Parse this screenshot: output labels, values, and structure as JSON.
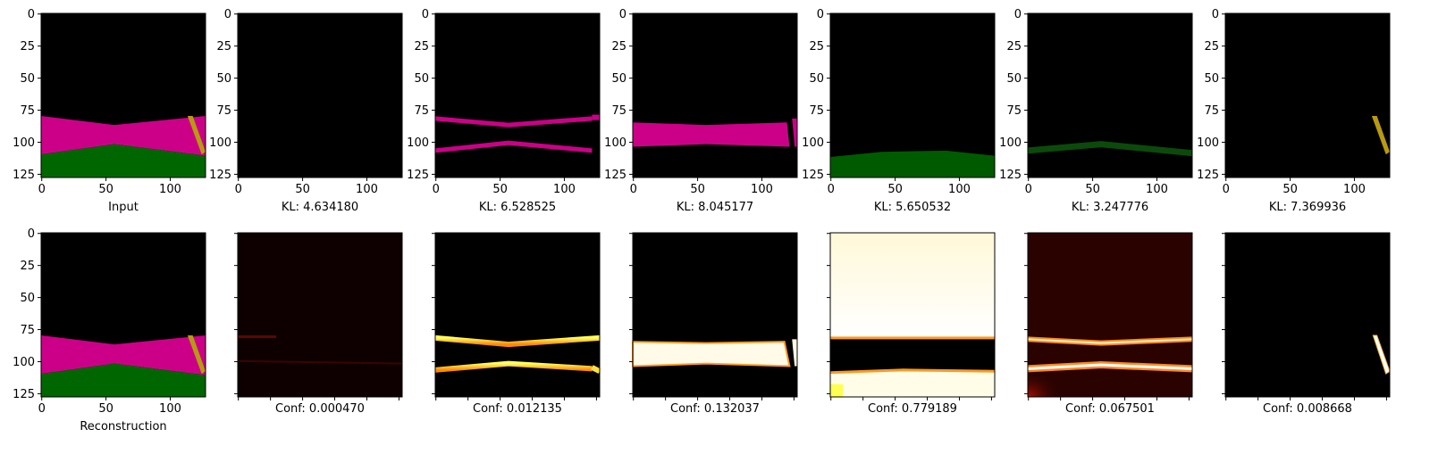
{
  "chart_data": {
    "type": "image_grid",
    "axis": {
      "ticks": [
        0,
        25,
        50,
        75,
        100,
        125
      ],
      "xticks": [
        0,
        50,
        100
      ],
      "range": [
        0,
        128
      ]
    },
    "colors": {
      "magenta": "#cc0088",
      "green": "#006600",
      "yellow": "#b89a10",
      "black": "#000000",
      "white": "#ffffff"
    },
    "top_row": [
      {
        "label": "Input",
        "layers": [
          "magenta",
          "green",
          "yellow"
        ]
      },
      {
        "label": "KL: 4.634180",
        "layers": []
      },
      {
        "label": "KL: 6.528525",
        "layers": [
          "magenta-edges"
        ]
      },
      {
        "label": "KL: 8.045177",
        "layers": [
          "magenta-band"
        ]
      },
      {
        "label": "KL: 5.650532",
        "layers": [
          "green-bottom"
        ]
      },
      {
        "label": "KL: 3.247776",
        "layers": [
          "green-edge"
        ]
      },
      {
        "label": "KL: 7.369936",
        "layers": [
          "yellow"
        ]
      }
    ],
    "bottom_row": [
      {
        "label": "Reconstruction",
        "layers": [
          "magenta",
          "green",
          "yellow"
        ]
      },
      {
        "label": "Conf: 0.000470",
        "heat": "faint"
      },
      {
        "label": "Conf: 0.012135",
        "heat": "edges"
      },
      {
        "label": "Conf: 0.132037",
        "heat": "band"
      },
      {
        "label": "Conf: 0.779189",
        "heat": "outside"
      },
      {
        "label": "Conf: 0.067501",
        "heat": "edges-soft"
      },
      {
        "label": "Conf: 0.008668",
        "heat": "stick"
      }
    ]
  }
}
